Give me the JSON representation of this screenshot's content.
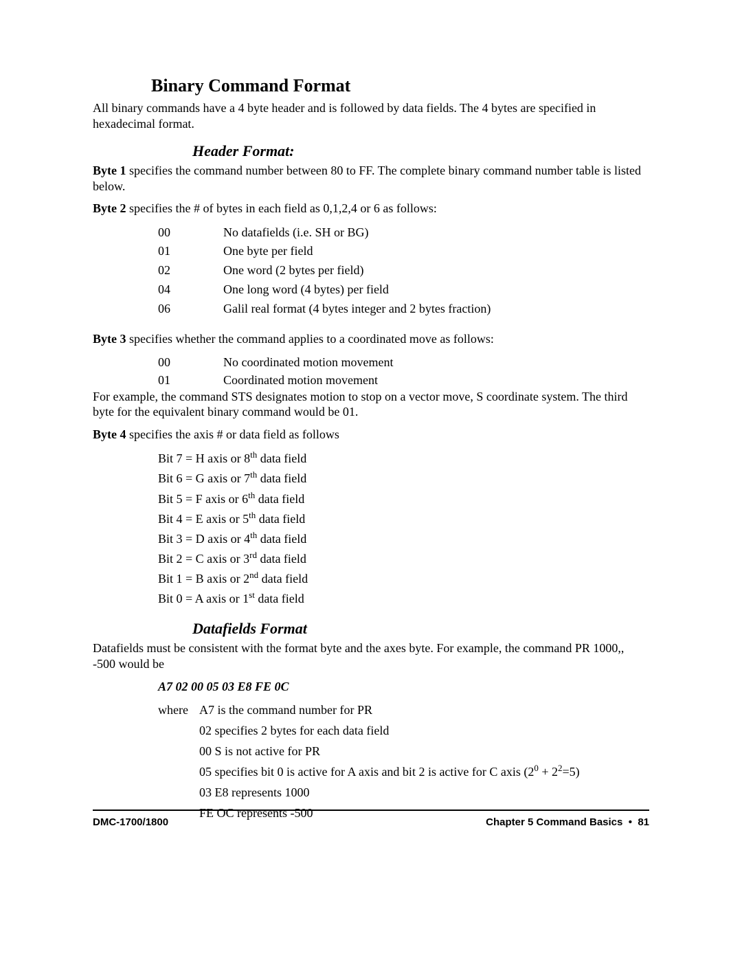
{
  "title": "Binary Command Format",
  "intro": "All binary commands have a 4 byte header and is followed by data fields.  The 4 bytes are specified in hexadecimal format.",
  "header_format_title": "Header Format:",
  "byte1_label": "Byte 1",
  "byte1_text": " specifies the command number between 80 to FF.  The complete binary command number table is listed below.",
  "byte2_label": "Byte 2",
  "byte2_text": " specifies the # of bytes in each field as 0,1,2,4 or 6 as follows:",
  "byte2_table": [
    {
      "code": "00",
      "desc": "No datafields (i.e. SH or BG)"
    },
    {
      "code": "01",
      "desc": "One byte per field"
    },
    {
      "code": "02",
      "desc": "One word (2 bytes per field)"
    },
    {
      "code": "04",
      "desc": "One long word (4 bytes) per field"
    },
    {
      "code": "06",
      "desc": "Galil real format (4 bytes integer and 2 bytes fraction)"
    }
  ],
  "byte3_label": "Byte 3",
  "byte3_text": " specifies whether the command applies to a coordinated move as follows:",
  "byte3_table": [
    {
      "code": "00",
      "desc": "No coordinated motion movement"
    },
    {
      "code": "01",
      "desc": "Coordinated motion movement"
    }
  ],
  "byte3_example": "For example, the command STS designates motion to stop on a vector move, S coordinate system.  The third byte for the equivalent binary command would be 01.",
  "byte4_label": "Byte 4",
  "byte4_text": " specifies the axis # or data field as follows",
  "bits": [
    {
      "pre": "Bit 7 = H axis or 8",
      "sup": "th",
      "post": " data field"
    },
    {
      "pre": "Bit 6 = G axis or 7",
      "sup": "th",
      "post": " data field"
    },
    {
      "pre": "Bit 5 = F axis or 6",
      "sup": "th",
      "post": " data field"
    },
    {
      "pre": "Bit 4 = E axis or 5",
      "sup": "th",
      "post": " data field"
    },
    {
      "pre": "Bit 3 = D axis or 4",
      "sup": "th",
      "post": "  data field"
    },
    {
      "pre": "Bit 2 = C axis or 3",
      "sup": "rd",
      "post": "  data field"
    },
    {
      "pre": "Bit 1 = B axis or 2",
      "sup": "nd",
      "post": "  data field"
    },
    {
      "pre": "Bit 0 = A axis or 1",
      "sup": "st",
      "post": "  data field"
    }
  ],
  "datafields_title": "Datafields Format",
  "datafields_intro": "Datafields must be consistent with the format byte and the axes byte.  For example, the command PR 1000,, -500 would be",
  "hex_string": "A7 02 00 05 03 E8 FE 0C",
  "where_label": "where",
  "explain": {
    "first": "A7 is the command number for PR",
    "rest": [
      "02 specifies 2 bytes for each data field",
      "00 S is not active for PR"
    ],
    "bits_line_pre": "05 specifies bit 0 is active for A axis and bit 2 is active for C axis  (2",
    "bits_sup1": "0",
    "bits_mid": " + 2",
    "bits_sup2": "2",
    "bits_post": "=5)",
    "rest2": [
      "03 E8 represents 1000",
      "FE OC represents -500"
    ]
  },
  "footer": {
    "left": "DMC-1700/1800",
    "right_chapter": "Chapter 5  Command Basics",
    "right_page": "81"
  }
}
